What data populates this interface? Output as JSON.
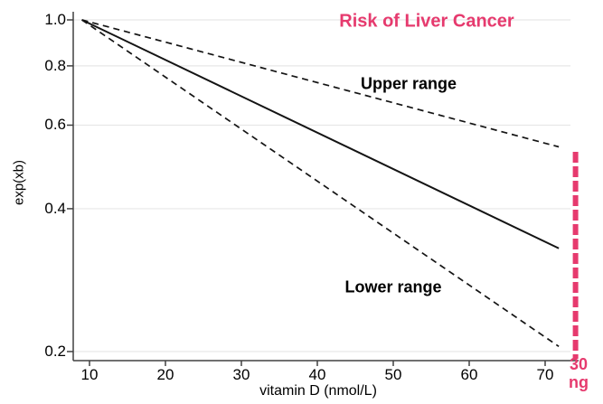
{
  "colors": {
    "accent": "#e63a6e",
    "series": "#141414",
    "axis": "#404040",
    "grid": "#e7e7e7"
  },
  "chart_data": {
    "type": "line",
    "title": "Risk of Liver Cancer",
    "xlabel": "vitamin D (nmol/L)",
    "ylabel": "exp(xb)",
    "y_scale": "log",
    "xlim": [
      7.9,
      73.3
    ],
    "ylim": [
      0.19,
      1.04
    ],
    "x_ticks": [
      10,
      20,
      30,
      40,
      50,
      60,
      70
    ],
    "y_ticks": [
      1.0,
      0.8,
      0.6,
      0.4,
      0.2
    ],
    "y_tick_labels": [
      "1.0",
      "0.8",
      "0.6",
      "0.4",
      "0.2"
    ],
    "grid": "horizontal",
    "series": [
      {
        "name": "upper-range",
        "label": "Upper range",
        "style": "dashed",
        "x": [
          9,
          71.8
        ],
        "values": [
          1.0,
          0.54
        ]
      },
      {
        "name": "estimate",
        "label": "",
        "style": "solid",
        "x": [
          9,
          71.8
        ],
        "values": [
          1.0,
          0.33
        ]
      },
      {
        "name": "lower-range",
        "label": "Lower range",
        "style": "dashed",
        "x": [
          9,
          71.8
        ],
        "values": [
          1.0,
          0.205
        ]
      }
    ],
    "reference_line": {
      "x": 74,
      "style": "dashed",
      "label": "30 ng",
      "label_lines": [
        "30",
        "ng"
      ]
    }
  }
}
